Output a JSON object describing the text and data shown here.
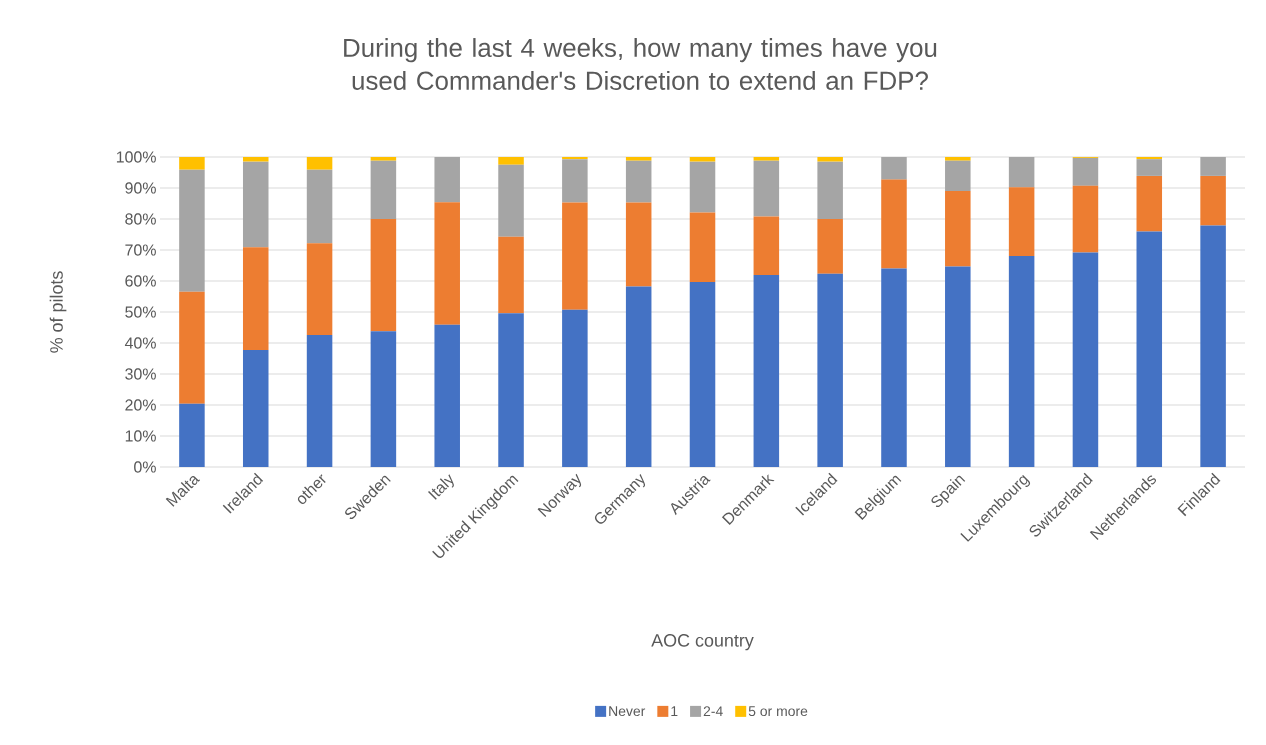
{
  "chart_data": {
    "type": "bar",
    "stacked": true,
    "title": "During the last 4 weeks, how many times have you used Commander's Discretion to extend an FDP?",
    "xlabel": "AOC country",
    "ylabel": "% of pilots",
    "categories": [
      "Malta",
      "Ireland",
      "other",
      "Sweden",
      "Italy",
      "United Kingdom",
      "Norway",
      "Germany",
      "Austria",
      "Denmark",
      "Iceland",
      "Belgium",
      "Spain",
      "Luxembourg",
      "Switzerland",
      "Netherlands",
      "Finland"
    ],
    "series": [
      {
        "name": "Never",
        "color": "#4472c4",
        "values": [
          20.4,
          37.7,
          42.6,
          43.8,
          45.9,
          49.6,
          50.7,
          58.2,
          59.7,
          61.9,
          62.3,
          64.0,
          64.7,
          68.1,
          69.2,
          76.0,
          77.9
        ]
      },
      {
        "name": "1",
        "color": "#ed7d31",
        "values": [
          36.1,
          33.2,
          29.6,
          36.2,
          39.5,
          24.7,
          34.6,
          27.1,
          22.4,
          18.9,
          17.7,
          28.7,
          24.3,
          22.1,
          21.5,
          17.9,
          16.0
        ]
      },
      {
        "name": "2-4",
        "color": "#a5a5a5",
        "values": [
          39.4,
          27.6,
          23.7,
          18.8,
          14.6,
          23.2,
          14.0,
          13.5,
          16.4,
          18.0,
          18.5,
          7.3,
          9.8,
          9.8,
          9.0,
          5.4,
          6.1
        ]
      },
      {
        "name": "5 or more",
        "color": "#ffc000",
        "values": [
          4.1,
          1.5,
          4.1,
          1.2,
          0,
          2.5,
          0.7,
          1.2,
          1.5,
          1.2,
          1.5,
          0,
          1.2,
          0,
          0.3,
          0.7,
          0
        ]
      }
    ],
    "ylim": [
      0,
      100
    ],
    "yticks": [
      {
        "value": 0,
        "label": "0%"
      },
      {
        "value": 10,
        "label": "10%"
      },
      {
        "value": 20,
        "label": "20%"
      },
      {
        "value": 30,
        "label": "30%"
      },
      {
        "value": 40,
        "label": "40%"
      },
      {
        "value": 50,
        "label": "50%"
      },
      {
        "value": 60,
        "label": "60%"
      },
      {
        "value": 70,
        "label": "70%"
      },
      {
        "value": 80,
        "label": "80%"
      },
      {
        "value": 90,
        "label": "90%"
      },
      {
        "value": 100,
        "label": "100%"
      }
    ],
    "grid": "y",
    "legend": "bottom"
  }
}
